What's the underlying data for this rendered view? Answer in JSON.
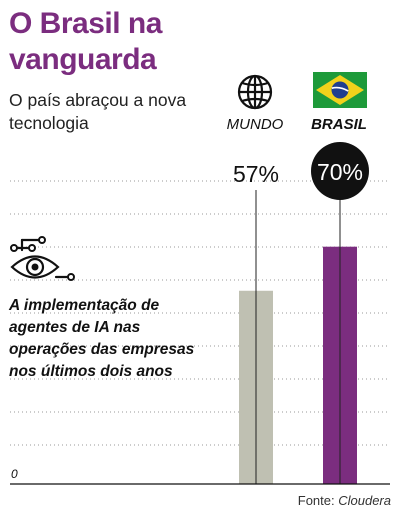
{
  "title": "O Brasil na vanguarda",
  "subtitle": "O país abraçou a nova tecnologia",
  "annotation": "A implementação de agentes de IA nas operações das empresas nos últimos dois anos",
  "source": {
    "prefix": "Fonte: ",
    "name": "Cloudera"
  },
  "colors": {
    "accent": "#7b2d7f",
    "mundo": "#bfc0b2",
    "brasil": "#7b2d7f"
  },
  "icons": {
    "mundo": "globe-icon",
    "brasil": "brazil-flag-icon",
    "annotation": "eye-circuit-icon"
  },
  "chart_data": {
    "type": "bar",
    "categories": [
      "MUNDO",
      "BRASIL"
    ],
    "values": [
      57,
      70
    ],
    "labels": [
      "57%",
      "70%"
    ],
    "ylim": [
      0,
      100
    ],
    "grid": true,
    "baseline_label": "0"
  }
}
